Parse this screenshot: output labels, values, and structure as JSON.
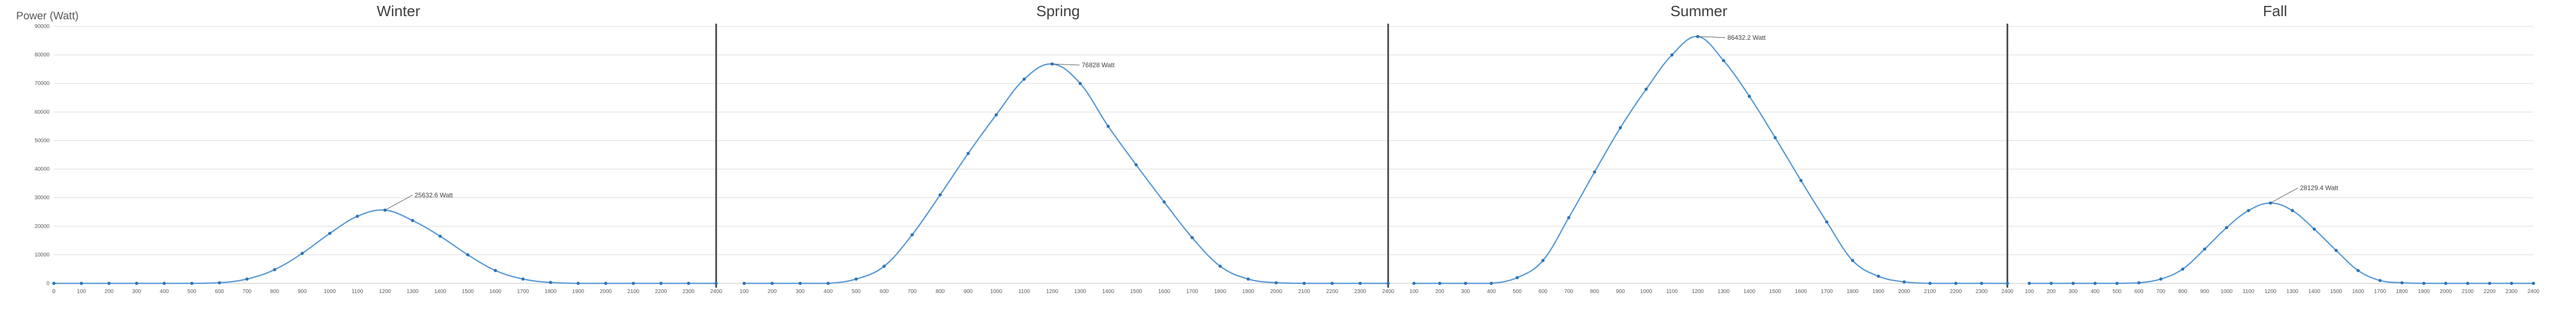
{
  "chart_data": {
    "type": "line",
    "ylabel": "Power (Watt)",
    "ylim": [
      0,
      90000
    ],
    "y_ticks": [
      0,
      10000,
      20000,
      30000,
      40000,
      50000,
      60000,
      70000,
      80000,
      90000
    ],
    "grid": true,
    "legend": "none",
    "colors": {
      "series": "#5b9bd5",
      "marker": "#2e75b6",
      "grid": "#d9d9d9",
      "divider": "#404040",
      "text": "#404040"
    },
    "series": [
      {
        "panel": "Winter",
        "x": [
          "0",
          "100",
          "200",
          "300",
          "400",
          "500",
          "600",
          "700",
          "800",
          "900",
          "1000",
          "1100",
          "1200",
          "1300",
          "1400",
          "1500",
          "1600",
          "1700",
          "1800",
          "1900",
          "2000",
          "2100",
          "2200",
          "2300",
          "2400"
        ],
        "values": [
          0,
          0,
          0,
          0,
          0,
          0,
          200,
          1500,
          4800,
          10500,
          17500,
          23500,
          25632.6,
          22000,
          16500,
          10000,
          4500,
          1500,
          300,
          0,
          0,
          0,
          0,
          0,
          0
        ],
        "annotation": {
          "label": "25632.6  Watt",
          "at": "1200"
        }
      },
      {
        "panel": "Spring",
        "x": [
          "100",
          "200",
          "300",
          "400",
          "500",
          "600",
          "700",
          "800",
          "900",
          "1000",
          "1100",
          "1200",
          "1300",
          "1400",
          "1500",
          "1600",
          "1700",
          "1800",
          "1900",
          "2000",
          "2100",
          "2200",
          "2300",
          "2400"
        ],
        "values": [
          0,
          0,
          0,
          0,
          1500,
          6000,
          17000,
          31000,
          45500,
          59000,
          71500,
          76828,
          70000,
          55000,
          41500,
          28500,
          16000,
          6000,
          1500,
          200,
          0,
          0,
          0,
          0
        ],
        "annotation": {
          "label": "76828  Watt",
          "at": "1200"
        }
      },
      {
        "panel": "Summer",
        "x": [
          "100",
          "200",
          "300",
          "400",
          "500",
          "600",
          "700",
          "800",
          "900",
          "1000",
          "1100",
          "1200",
          "1300",
          "1400",
          "1500",
          "1600",
          "1700",
          "1800",
          "1900",
          "2000",
          "2100",
          "2200",
          "2300",
          "2400"
        ],
        "values": [
          0,
          0,
          0,
          0,
          2000,
          8000,
          23000,
          39000,
          54500,
          68000,
          80000,
          86432.2,
          78000,
          65500,
          51000,
          36000,
          21500,
          8000,
          2500,
          500,
          0,
          0,
          0,
          0
        ],
        "annotation": {
          "label": "86432.2  Watt",
          "at": "1200"
        }
      },
      {
        "panel": "Fall",
        "x": [
          "100",
          "200",
          "300",
          "400",
          "500",
          "600",
          "700",
          "800",
          "900",
          "1000",
          "1100",
          "1200",
          "1300",
          "1400",
          "1500",
          "1600",
          "1700",
          "1800",
          "1900",
          "2000",
          "2100",
          "2200",
          "2300",
          "2400"
        ],
        "values": [
          0,
          0,
          0,
          0,
          0,
          200,
          1500,
          5000,
          12000,
          19500,
          25500,
          28129.4,
          25500,
          19000,
          11500,
          4500,
          1000,
          200,
          0,
          0,
          0,
          0,
          0,
          0
        ],
        "annotation": {
          "label": "28129.4  Watt",
          "at": "1200"
        }
      }
    ]
  }
}
